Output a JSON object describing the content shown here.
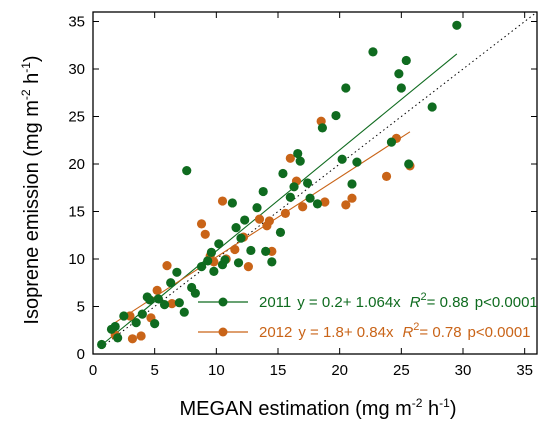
{
  "chart_data": {
    "type": "scatter",
    "xlabel": "MEGAN estimation (mg m",
    "xlabel_exp": "-2",
    "xlabel_tail": " h",
    "xlabel_exp2": "-1",
    "xlabel_close": ")",
    "ylabel": "Isoprene emission (mg m",
    "ylabel_exp": "-2",
    "ylabel_tail": " h",
    "ylabel_exp2": "-1",
    "ylabel_close": ")",
    "xlim": [
      0,
      36
    ],
    "ylim": [
      0,
      36
    ],
    "xticks": [
      "0",
      "5",
      "10",
      "15",
      "20",
      "25",
      "30",
      "35"
    ],
    "yticks": [
      "0",
      "5",
      "10",
      "15",
      "20",
      "25",
      "30",
      "35"
    ],
    "one_to_one_line": true,
    "legend_position": "bottom-right",
    "series": [
      {
        "name": "2011",
        "color": "#0f6b1f",
        "fit_label": "y = 0.2+ 1.064x",
        "r2_label": "R",
        "r2_sup": "2",
        "r2_value": "= 0.88",
        "p_label": "p<0.0001",
        "fit": {
          "intercept": 0.2,
          "slope": 1.064,
          "x_range": [
            0.9,
            29.5
          ]
        },
        "points": [
          [
            0.7,
            1.0
          ],
          [
            1.5,
            2.6
          ],
          [
            1.8,
            2.9
          ],
          [
            2.0,
            1.7
          ],
          [
            2.5,
            4.0
          ],
          [
            3.5,
            3.3
          ],
          [
            4.0,
            4.2
          ],
          [
            4.4,
            6.0
          ],
          [
            4.6,
            5.7
          ],
          [
            5.0,
            3.2
          ],
          [
            5.3,
            5.8
          ],
          [
            5.8,
            5.2
          ],
          [
            6.3,
            7.5
          ],
          [
            6.8,
            8.6
          ],
          [
            7.0,
            5.4
          ],
          [
            7.4,
            4.4
          ],
          [
            7.6,
            19.3
          ],
          [
            8.0,
            7.0
          ],
          [
            8.3,
            6.4
          ],
          [
            8.8,
            9.2
          ],
          [
            9.3,
            9.8
          ],
          [
            9.6,
            10.7
          ],
          [
            9.8,
            8.7
          ],
          [
            10.2,
            11.6
          ],
          [
            10.5,
            9.4
          ],
          [
            10.7,
            9.9
          ],
          [
            11.3,
            15.9
          ],
          [
            11.6,
            13.3
          ],
          [
            11.8,
            9.6
          ],
          [
            12.0,
            12.2
          ],
          [
            12.3,
            14.1
          ],
          [
            12.8,
            10.9
          ],
          [
            13.3,
            15.4
          ],
          [
            13.8,
            17.1
          ],
          [
            14.0,
            10.8
          ],
          [
            14.5,
            9.7
          ],
          [
            15.2,
            12.8
          ],
          [
            15.4,
            19.0
          ],
          [
            16.0,
            16.5
          ],
          [
            16.3,
            17.6
          ],
          [
            16.6,
            21.1
          ],
          [
            16.8,
            20.3
          ],
          [
            17.4,
            18.0
          ],
          [
            17.6,
            16.4
          ],
          [
            18.2,
            15.8
          ],
          [
            18.6,
            23.8
          ],
          [
            19.7,
            25.1
          ],
          [
            20.2,
            20.5
          ],
          [
            20.5,
            28.0
          ],
          [
            21.0,
            17.9
          ],
          [
            21.4,
            20.2
          ],
          [
            22.7,
            31.8
          ],
          [
            24.2,
            22.3
          ],
          [
            24.8,
            29.5
          ],
          [
            25.0,
            28.0
          ],
          [
            25.4,
            30.9
          ],
          [
            25.6,
            20.0
          ],
          [
            27.5,
            26.0
          ],
          [
            29.5,
            34.6
          ]
        ]
      },
      {
        "name": "2012",
        "color": "#c96418",
        "fit_label": "y = 1.8+ 0.84x",
        "r2_label": "R",
        "r2_sup": "2",
        "r2_value": "= 0.78",
        "p_label": "p<0.0001",
        "fit": {
          "intercept": 1.8,
          "slope": 0.84,
          "x_range": [
            1.5,
            25.7
          ]
        },
        "points": [
          [
            1.8,
            2.0
          ],
          [
            3.0,
            4.0
          ],
          [
            3.2,
            1.6
          ],
          [
            3.9,
            1.9
          ],
          [
            4.7,
            3.8
          ],
          [
            5.2,
            6.7
          ],
          [
            6.0,
            9.3
          ],
          [
            6.4,
            5.3
          ],
          [
            8.8,
            13.7
          ],
          [
            9.1,
            12.6
          ],
          [
            9.5,
            10.3
          ],
          [
            9.8,
            9.7
          ],
          [
            10.5,
            16.1
          ],
          [
            10.8,
            10.0
          ],
          [
            11.5,
            11.0
          ],
          [
            12.2,
            12.3
          ],
          [
            12.6,
            9.2
          ],
          [
            13.5,
            14.2
          ],
          [
            14.1,
            13.5
          ],
          [
            14.3,
            14.0
          ],
          [
            14.5,
            10.8
          ],
          [
            15.6,
            14.8
          ],
          [
            16.0,
            20.6
          ],
          [
            16.5,
            18.2
          ],
          [
            17.0,
            15.5
          ],
          [
            18.5,
            24.5
          ],
          [
            18.8,
            16.0
          ],
          [
            20.5,
            15.7
          ],
          [
            21.0,
            16.4
          ],
          [
            23.8,
            18.7
          ],
          [
            24.6,
            22.7
          ],
          [
            25.7,
            19.8
          ]
        ]
      }
    ]
  }
}
